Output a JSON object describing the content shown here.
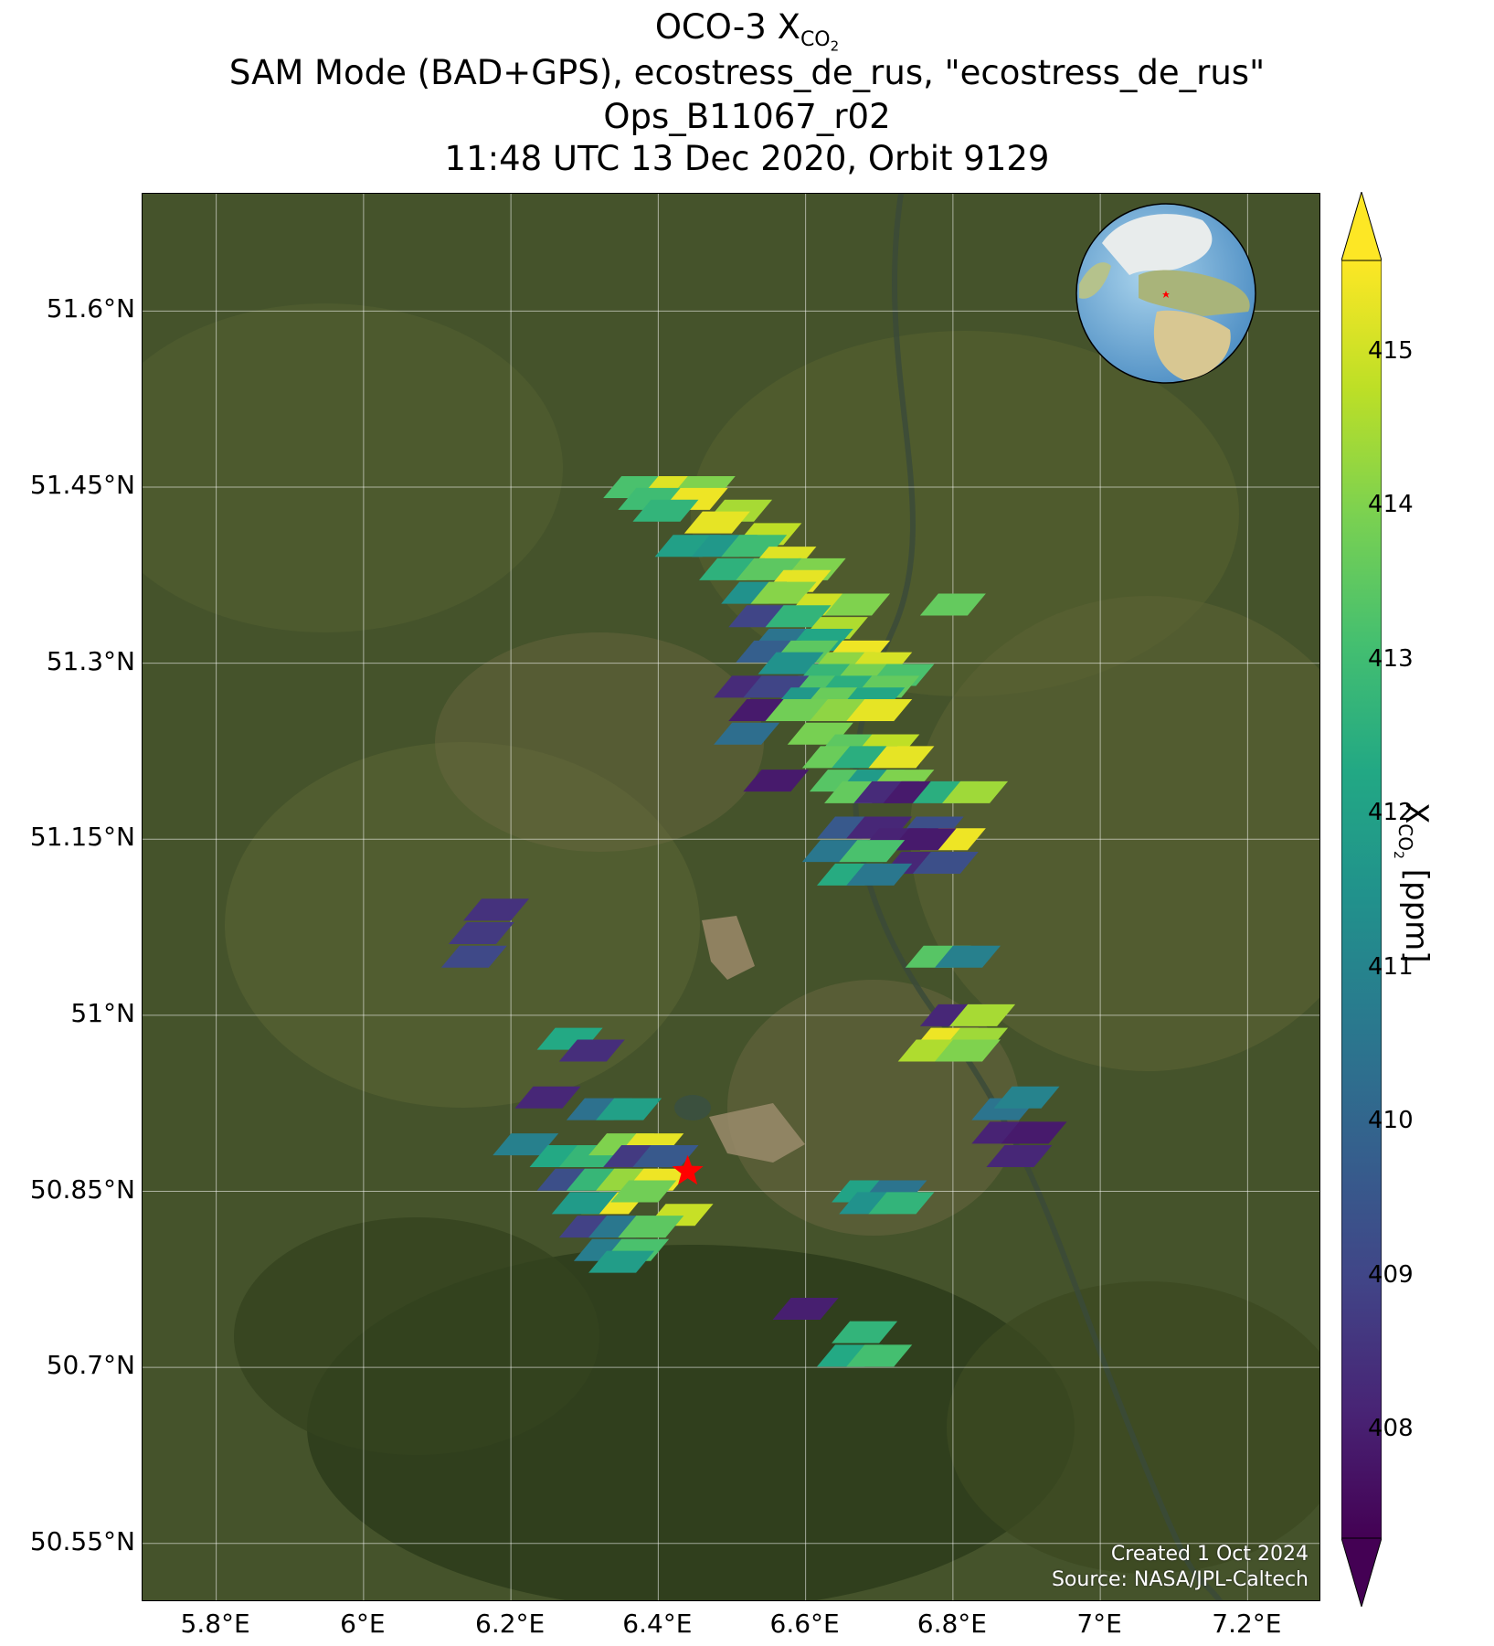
{
  "title": {
    "line1_main": "OCO-3 X",
    "line1_sub": "CO",
    "line1_subsub": "2",
    "line2": "SAM Mode (BAD+GPS), ecostress_de_rus, \"ecostress_de_rus\"",
    "line3": "Ops_B11067_r02",
    "line4": "11:48 UTC 13 Dec 2020, Orbit 9129"
  },
  "credit": {
    "created": "Created 1 Oct 2024",
    "source": "Source: NASA/JPL-Caltech"
  },
  "axes": {
    "lon_range": [
      5.7,
      7.3
    ],
    "lat_range": [
      50.5,
      51.7
    ],
    "lat_ticks": [
      "51.6°N",
      "51.45°N",
      "51.3°N",
      "51.15°N",
      "51°N",
      "50.85°N",
      "50.7°N",
      "50.55°N"
    ],
    "lat_values": [
      51.6,
      51.45,
      51.3,
      51.15,
      51.0,
      50.85,
      50.7,
      50.55
    ],
    "lon_ticks": [
      "5.8°E",
      "6°E",
      "6.2°E",
      "6.4°E",
      "6.6°E",
      "6.8°E",
      "7°E",
      "7.2°E"
    ],
    "lon_values": [
      5.8,
      6.0,
      6.2,
      6.4,
      6.6,
      6.8,
      7.0,
      7.2
    ],
    "grid": true
  },
  "colorbar": {
    "label_main": "X",
    "label_sub": "CO",
    "label_subsub": "2",
    "label_unit": " [ppm]",
    "range": [
      407.3,
      415.6
    ],
    "ticks": [
      "408",
      "409",
      "410",
      "411",
      "412",
      "413",
      "414",
      "415"
    ],
    "tick_values": [
      408,
      409,
      410,
      411,
      412,
      413,
      414,
      415
    ],
    "colormap": "viridis",
    "extend": "both"
  },
  "target": {
    "symbol": "red-star",
    "lon": 6.44,
    "lat": 50.867,
    "color": "#ff0000"
  },
  "inset_globe": {
    "description": "globe-inset",
    "marker": "red-star",
    "position": "top-right"
  },
  "chart_data": {
    "type": "map",
    "variable": "XCO2",
    "units": "ppm",
    "soundings": [
      {
        "lon": 6.37,
        "lat": 51.45,
        "v": 413.2
      },
      {
        "lon": 6.42,
        "lat": 51.45,
        "v": 415.2
      },
      {
        "lon": 6.46,
        "lat": 51.45,
        "v": 414.0
      },
      {
        "lon": 6.39,
        "lat": 51.44,
        "v": 413.0
      },
      {
        "lon": 6.45,
        "lat": 51.44,
        "v": 415.4
      },
      {
        "lon": 6.51,
        "lat": 51.43,
        "v": 414.5
      },
      {
        "lon": 6.41,
        "lat": 51.43,
        "v": 412.7
      },
      {
        "lon": 6.48,
        "lat": 51.42,
        "v": 415.3
      },
      {
        "lon": 6.55,
        "lat": 51.41,
        "v": 414.8
      },
      {
        "lon": 6.44,
        "lat": 51.4,
        "v": 412.0
      },
      {
        "lon": 6.49,
        "lat": 51.4,
        "v": 411.7
      },
      {
        "lon": 6.53,
        "lat": 51.4,
        "v": 413.0
      },
      {
        "lon": 6.57,
        "lat": 51.39,
        "v": 415.2
      },
      {
        "lon": 6.61,
        "lat": 51.38,
        "v": 414.0
      },
      {
        "lon": 6.5,
        "lat": 51.38,
        "v": 412.6
      },
      {
        "lon": 6.55,
        "lat": 51.38,
        "v": 413.5
      },
      {
        "lon": 6.59,
        "lat": 51.37,
        "v": 415.3
      },
      {
        "lon": 6.53,
        "lat": 51.36,
        "v": 411.5
      },
      {
        "lon": 6.57,
        "lat": 51.36,
        "v": 414.1
      },
      {
        "lon": 6.62,
        "lat": 51.35,
        "v": 415.0
      },
      {
        "lon": 6.67,
        "lat": 51.35,
        "v": 414.0
      },
      {
        "lon": 6.54,
        "lat": 51.34,
        "v": 409.0
      },
      {
        "lon": 6.59,
        "lat": 51.34,
        "v": 412.7
      },
      {
        "lon": 6.64,
        "lat": 51.33,
        "v": 414.6
      },
      {
        "lon": 6.57,
        "lat": 51.32,
        "v": 410.5
      },
      {
        "lon": 6.62,
        "lat": 51.32,
        "v": 412.2
      },
      {
        "lon": 6.67,
        "lat": 51.31,
        "v": 415.4
      },
      {
        "lon": 6.55,
        "lat": 51.31,
        "v": 409.8
      },
      {
        "lon": 6.6,
        "lat": 51.31,
        "v": 413.5
      },
      {
        "lon": 6.65,
        "lat": 51.3,
        "v": 414.2
      },
      {
        "lon": 6.7,
        "lat": 51.3,
        "v": 415.1
      },
      {
        "lon": 6.58,
        "lat": 51.3,
        "v": 411.5
      },
      {
        "lon": 6.63,
        "lat": 51.29,
        "v": 412.8
      },
      {
        "lon": 6.68,
        "lat": 51.29,
        "v": 413.9
      },
      {
        "lon": 6.73,
        "lat": 51.29,
        "v": 413.2
      },
      {
        "lon": 6.61,
        "lat": 51.28,
        "v": 413.3
      },
      {
        "lon": 6.66,
        "lat": 51.28,
        "v": 412.5
      },
      {
        "lon": 6.71,
        "lat": 51.28,
        "v": 413.6
      },
      {
        "lon": 6.52,
        "lat": 51.28,
        "v": 408.3
      },
      {
        "lon": 6.56,
        "lat": 51.28,
        "v": 409.0
      },
      {
        "lon": 6.6,
        "lat": 51.27,
        "v": 411.7
      },
      {
        "lon": 6.64,
        "lat": 51.27,
        "v": 413.7
      },
      {
        "lon": 6.69,
        "lat": 51.27,
        "v": 412.2
      },
      {
        "lon": 6.54,
        "lat": 51.26,
        "v": 407.9
      },
      {
        "lon": 6.59,
        "lat": 51.26,
        "v": 413.8
      },
      {
        "lon": 6.65,
        "lat": 51.26,
        "v": 414.2
      },
      {
        "lon": 6.7,
        "lat": 51.26,
        "v": 415.3
      },
      {
        "lon": 6.62,
        "lat": 51.24,
        "v": 413.9
      },
      {
        "lon": 6.52,
        "lat": 51.24,
        "v": 410.3
      },
      {
        "lon": 6.66,
        "lat": 51.23,
        "v": 413.5
      },
      {
        "lon": 6.71,
        "lat": 51.23,
        "v": 414.8
      },
      {
        "lon": 6.64,
        "lat": 51.22,
        "v": 413.7
      },
      {
        "lon": 6.68,
        "lat": 51.22,
        "v": 412.5
      },
      {
        "lon": 6.73,
        "lat": 51.22,
        "v": 415.3
      },
      {
        "lon": 6.65,
        "lat": 51.2,
        "v": 413.4
      },
      {
        "lon": 6.69,
        "lat": 51.2,
        "v": 411.8
      },
      {
        "lon": 6.73,
        "lat": 51.2,
        "v": 414.0
      },
      {
        "lon": 6.56,
        "lat": 51.2,
        "v": 407.9
      },
      {
        "lon": 6.67,
        "lat": 51.19,
        "v": 413.6
      },
      {
        "lon": 6.71,
        "lat": 51.19,
        "v": 408.3
      },
      {
        "lon": 6.75,
        "lat": 51.19,
        "v": 407.9
      },
      {
        "lon": 6.79,
        "lat": 51.19,
        "v": 412.5
      },
      {
        "lon": 6.83,
        "lat": 51.19,
        "v": 414.4
      },
      {
        "lon": 6.66,
        "lat": 51.16,
        "v": 409.6
      },
      {
        "lon": 6.7,
        "lat": 51.16,
        "v": 408.2
      },
      {
        "lon": 6.77,
        "lat": 51.16,
        "v": 409.3
      },
      {
        "lon": 6.8,
        "lat": 51.15,
        "v": 415.4
      },
      {
        "lon": 6.72,
        "lat": 51.15,
        "v": 408.1
      },
      {
        "lon": 6.76,
        "lat": 51.15,
        "v": 407.9
      },
      {
        "lon": 6.64,
        "lat": 51.14,
        "v": 410.6
      },
      {
        "lon": 6.69,
        "lat": 51.14,
        "v": 413.2
      },
      {
        "lon": 6.75,
        "lat": 51.13,
        "v": 408.2
      },
      {
        "lon": 6.79,
        "lat": 51.13,
        "v": 409.3
      },
      {
        "lon": 6.66,
        "lat": 51.12,
        "v": 412.4
      },
      {
        "lon": 6.7,
        "lat": 51.12,
        "v": 410.6
      },
      {
        "lon": 6.8,
        "lat": 51.35,
        "v": 413.6
      },
      {
        "lon": 6.18,
        "lat": 51.09,
        "v": 408.5
      },
      {
        "lon": 6.16,
        "lat": 51.07,
        "v": 408.7
      },
      {
        "lon": 6.15,
        "lat": 51.05,
        "v": 409.1
      },
      {
        "lon": 6.78,
        "lat": 51.05,
        "v": 413.4
      },
      {
        "lon": 6.82,
        "lat": 51.05,
        "v": 410.9
      },
      {
        "lon": 6.8,
        "lat": 51.0,
        "v": 408.2
      },
      {
        "lon": 6.84,
        "lat": 51.0,
        "v": 414.5
      },
      {
        "lon": 6.79,
        "lat": 50.98,
        "v": 415.4
      },
      {
        "lon": 6.83,
        "lat": 50.98,
        "v": 414.4
      },
      {
        "lon": 6.77,
        "lat": 50.97,
        "v": 414.6
      },
      {
        "lon": 6.82,
        "lat": 50.97,
        "v": 414.0
      },
      {
        "lon": 6.28,
        "lat": 50.98,
        "v": 412.3
      },
      {
        "lon": 6.31,
        "lat": 50.97,
        "v": 408.4
      },
      {
        "lon": 6.25,
        "lat": 50.93,
        "v": 408.2
      },
      {
        "lon": 6.32,
        "lat": 50.92,
        "v": 410.4
      },
      {
        "lon": 6.36,
        "lat": 50.92,
        "v": 412.0
      },
      {
        "lon": 6.87,
        "lat": 50.92,
        "v": 410.5
      },
      {
        "lon": 6.9,
        "lat": 50.93,
        "v": 411.0
      },
      {
        "lon": 6.87,
        "lat": 50.9,
        "v": 408.1
      },
      {
        "lon": 6.91,
        "lat": 50.9,
        "v": 407.9
      },
      {
        "lon": 6.89,
        "lat": 50.88,
        "v": 408.2
      },
      {
        "lon": 6.22,
        "lat": 50.89,
        "v": 410.9
      },
      {
        "lon": 6.27,
        "lat": 50.88,
        "v": 412.3
      },
      {
        "lon": 6.31,
        "lat": 50.88,
        "v": 412.8
      },
      {
        "lon": 6.35,
        "lat": 50.89,
        "v": 414.0
      },
      {
        "lon": 6.39,
        "lat": 50.89,
        "v": 415.3
      },
      {
        "lon": 6.37,
        "lat": 50.88,
        "v": 408.7
      },
      {
        "lon": 6.41,
        "lat": 50.88,
        "v": 409.6
      },
      {
        "lon": 6.28,
        "lat": 50.86,
        "v": 409.3
      },
      {
        "lon": 6.32,
        "lat": 50.86,
        "v": 412.8
      },
      {
        "lon": 6.36,
        "lat": 50.86,
        "v": 414.3
      },
      {
        "lon": 6.4,
        "lat": 50.86,
        "v": 415.4
      },
      {
        "lon": 6.34,
        "lat": 50.84,
        "v": 415.4
      },
      {
        "lon": 6.38,
        "lat": 50.85,
        "v": 413.8
      },
      {
        "lon": 6.3,
        "lat": 50.84,
        "v": 411.8
      },
      {
        "lon": 6.43,
        "lat": 50.83,
        "v": 414.9
      },
      {
        "lon": 6.31,
        "lat": 50.82,
        "v": 408.9
      },
      {
        "lon": 6.35,
        "lat": 50.82,
        "v": 410.6
      },
      {
        "lon": 6.39,
        "lat": 50.82,
        "v": 413.5
      },
      {
        "lon": 6.33,
        "lat": 50.8,
        "v": 410.8
      },
      {
        "lon": 6.37,
        "lat": 50.8,
        "v": 413.2
      },
      {
        "lon": 6.35,
        "lat": 50.79,
        "v": 411.9
      },
      {
        "lon": 6.68,
        "lat": 50.85,
        "v": 412.1
      },
      {
        "lon": 6.72,
        "lat": 50.85,
        "v": 410.5
      },
      {
        "lon": 6.69,
        "lat": 50.84,
        "v": 411.5
      },
      {
        "lon": 6.73,
        "lat": 50.84,
        "v": 412.7
      },
      {
        "lon": 6.6,
        "lat": 50.75,
        "v": 408.0
      },
      {
        "lon": 6.68,
        "lat": 50.73,
        "v": 412.7
      },
      {
        "lon": 6.66,
        "lat": 50.71,
        "v": 412.3
      },
      {
        "lon": 6.7,
        "lat": 50.71,
        "v": 413.1
      }
    ]
  }
}
